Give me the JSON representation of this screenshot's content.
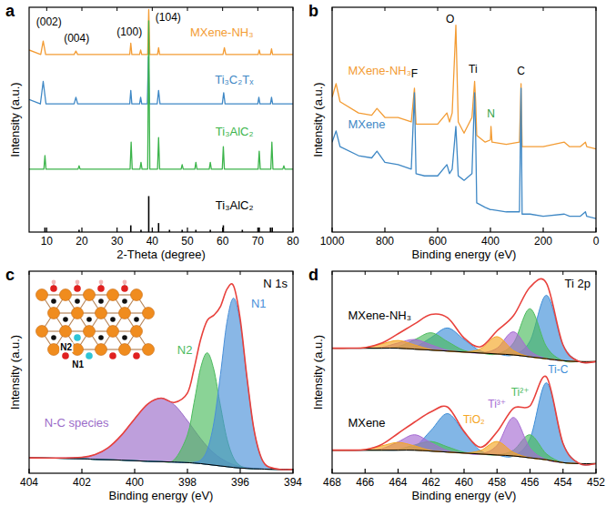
{
  "chart_data": [
    {
      "type": "line",
      "panel": "a",
      "xlabel": "2-Theta (degree)",
      "ylabel": "Intensity (a.u.)",
      "xlim": [
        5,
        80
      ],
      "xticks": [
        10,
        20,
        30,
        40,
        50,
        60,
        70,
        80
      ],
      "ylim": [
        0,
        100
      ],
      "tick_labels": "x",
      "annotations": [
        {
          "text": "(002)"
        },
        {
          "text": "(004)"
        },
        {
          "text": "(100)"
        },
        {
          "text": "(104)"
        }
      ],
      "series": [
        {
          "name": "MXene-NH₃",
          "color": "#f39c34",
          "x": [
            5,
            8.3,
            9.0,
            9.7,
            17.8,
            18.3,
            18.8,
            33.6,
            33.9,
            34.2,
            36.4,
            36.7,
            37.0,
            38.7,
            39.0,
            39.3,
            41.5,
            41.8,
            42.1,
            60.1,
            60.5,
            60.9,
            70.1,
            70.4,
            70.7,
            73.6,
            73.9,
            74.2,
            80
          ],
          "values": [
            81,
            79,
            85,
            79,
            79,
            80.5,
            79,
            79,
            84,
            79,
            79,
            81,
            79,
            79,
            99,
            79,
            79,
            82,
            79,
            79,
            82,
            79,
            79,
            81,
            79,
            79,
            81.5,
            79,
            79
          ]
        },
        {
          "name": "Ti₃C₂Tₓ",
          "color": "#3f88c5",
          "x": [
            5,
            8.2,
            9.0,
            9.8,
            17.8,
            18.3,
            18.8,
            33.6,
            33.9,
            34.2,
            36.4,
            36.7,
            37.0,
            38.6,
            38.9,
            39.2,
            41.4,
            41.8,
            42.2,
            59.9,
            60.3,
            60.7,
            70.0,
            70.3,
            70.6,
            73.6,
            73.9,
            74.2,
            80
          ],
          "values": [
            59,
            57,
            67,
            57,
            57,
            60,
            57,
            57,
            63,
            57,
            57,
            60,
            57,
            57,
            78,
            57,
            57,
            63,
            57,
            57,
            62,
            57,
            57,
            60,
            57,
            57,
            60,
            57,
            57
          ]
        },
        {
          "name": "Ti₃AlC₂",
          "color": "#3cb44b",
          "x": [
            5,
            9.2,
            9.5,
            9.8,
            18.9,
            19.2,
            19.5,
            33.7,
            34.0,
            34.3,
            36.5,
            36.8,
            37.1,
            38.7,
            39.0,
            39.3,
            41.5,
            41.8,
            42.1,
            48.2,
            48.5,
            48.8,
            52.1,
            52.4,
            52.7,
            56.2,
            56.5,
            56.8,
            59.9,
            60.2,
            60.5,
            70.1,
            70.4,
            70.7,
            73.7,
            74.0,
            74.3,
            77.1,
            77.4,
            77.7,
            80
          ],
          "values": [
            28,
            28,
            34,
            28,
            28,
            29.5,
            28,
            28,
            40,
            28,
            28,
            31,
            28,
            28,
            94,
            28,
            28,
            42,
            28,
            28,
            30,
            28,
            28,
            31,
            28,
            28,
            31,
            28,
            28,
            38,
            28,
            28,
            36,
            28,
            28,
            40,
            28,
            28,
            29.5,
            28,
            28
          ]
        },
        {
          "name": "Ti₃AlC₂",
          "type": "stem",
          "color": "#000000",
          "x": [
            9.5,
            19.2,
            33.9,
            36.8,
            39.0,
            41.8,
            44.9,
            48.5,
            52.4,
            56.5,
            60.2,
            65.6,
            70.4,
            73.6,
            74.1
          ],
          "values": [
            2,
            1,
            3,
            1,
            16,
            4,
            1,
            1,
            1,
            1,
            3,
            1,
            2,
            2,
            2
          ]
        }
      ]
    },
    {
      "type": "line",
      "panel": "b",
      "xlabel": "Binding energy (eV)",
      "ylabel": "Intensity (a.u.)",
      "xlim": [
        1000,
        0
      ],
      "xticks": [
        1000,
        800,
        600,
        400,
        200,
        0
      ],
      "ylim": [
        0,
        100
      ],
      "tick_labels": "x",
      "annotations": [
        {
          "text": "F",
          "color": "#000000"
        },
        {
          "text": "O",
          "color": "#000000"
        },
        {
          "text": "Ti",
          "color": "#000000"
        },
        {
          "text": "N",
          "color": "#2ea043"
        },
        {
          "text": "C",
          "color": "#000000"
        }
      ],
      "series": [
        {
          "name": "MXene-NH₃",
          "color": "#f39c34",
          "x": [
            1000,
            985,
            970,
            900,
            850,
            830,
            800,
            750,
            700,
            688,
            682,
            650,
            600,
            565,
            555,
            545,
            531,
            522,
            500,
            470,
            460,
            456,
            452,
            420,
            400,
            398,
            394,
            340,
            290,
            284,
            280,
            250,
            200,
            120,
            100,
            60,
            40,
            35,
            0
          ],
          "values": [
            60,
            66,
            58,
            53,
            52,
            55,
            51,
            51,
            49,
            64,
            48,
            48,
            48,
            53,
            49,
            53,
            92,
            49,
            44,
            51,
            67,
            58,
            43,
            40,
            41,
            47,
            40,
            39,
            40,
            66,
            38,
            38,
            38,
            40,
            38,
            38,
            40,
            38,
            37
          ]
        },
        {
          "name": "MXene",
          "color": "#3f88c5",
          "x": [
            1000,
            985,
            970,
            900,
            850,
            830,
            800,
            750,
            700,
            688,
            682,
            650,
            600,
            565,
            555,
            545,
            531,
            522,
            500,
            470,
            460,
            456,
            452,
            420,
            400,
            398,
            394,
            340,
            290,
            284,
            280,
            250,
            200,
            120,
            100,
            60,
            40,
            35,
            0
          ],
          "values": [
            40,
            45,
            38,
            34,
            33,
            36,
            31,
            30,
            28,
            62,
            26,
            25,
            25,
            30,
            26,
            28,
            47,
            25,
            23,
            26,
            62,
            43,
            13,
            11,
            10,
            10,
            10,
            9,
            9,
            64,
            8,
            8,
            7,
            8,
            7,
            7,
            9,
            7,
            6
          ]
        }
      ]
    },
    {
      "type": "line",
      "panel": "c",
      "title": "N 1s",
      "xlabel": "Binding energy (eV)",
      "ylabel": "Intensity (a.u.)",
      "xlim": [
        404,
        394
      ],
      "xticks": [
        404,
        402,
        400,
        398,
        396,
        394
      ],
      "ylim": [
        0,
        105
      ],
      "tick_labels": "x",
      "line_style": "smooth",
      "x": [
        404,
        403,
        402,
        401.5,
        401,
        400.5,
        400,
        399.5,
        399,
        398.5,
        398,
        397.75,
        397.5,
        397.25,
        397,
        396.75,
        396.5,
        396.25,
        396,
        395.75,
        395.5,
        395.25,
        395,
        394.5,
        394
      ],
      "background": {
        "color": "#000000",
        "values": [
          8,
          7.8,
          7.5,
          7.2,
          7,
          6.8,
          6.5,
          6.2,
          6,
          5.8,
          5.5,
          5.3,
          5,
          4.6,
          4.2,
          3.8,
          3.4,
          3,
          2.7,
          2.5,
          2.3,
          2.2,
          2.1,
          2,
          2
        ]
      },
      "series": [
        {
          "name": "N-C species",
          "type": "area",
          "color": "#9b6cc9",
          "values": [
            8,
            7.9,
            8.3,
            9.7,
            13.3,
            19.8,
            28.3,
            36,
            39,
            35.6,
            27.3,
            22.6,
            18,
            13.9,
            10.5,
            7.9,
            5.9,
            4.4,
            3.5,
            2.9,
            2.5,
            2.3,
            2.1,
            2,
            2
          ]
        },
        {
          "name": "N2",
          "type": "area",
          "color": "#4cbb5e",
          "values": [
            8,
            7.8,
            7.5,
            7.2,
            7,
            6.8,
            6.5,
            6.2,
            6,
            7,
            19.9,
            36.6,
            54.7,
            62.6,
            53.9,
            35.1,
            17.8,
            7.9,
            3.9,
            2.7,
            2.3,
            2.2,
            2.1,
            2,
            2
          ]
        },
        {
          "name": "N1",
          "type": "area",
          "color": "#4a90d9",
          "values": [
            8,
            7.8,
            7.5,
            7.2,
            7,
            6.8,
            6.5,
            6.2,
            6,
            5.8,
            5.5,
            5.7,
            6.8,
            12.1,
            26.1,
            51.2,
            78.8,
            91,
            78.1,
            49.9,
            24.2,
            9.7,
            3.9,
            2,
            2
          ]
        },
        {
          "type": "line",
          "color": "#e8413c",
          "values": [
            8,
            7.9,
            8.3,
            9.7,
            13.3,
            19.8,
            28.3,
            36,
            39,
            36.8,
            41.7,
            54.3,
            69.5,
            79.4,
            82.1,
            86.6,
            95.7,
            97.3,
            80.1,
            50.5,
            24.4,
            9.8,
            3.9,
            2,
            2
          ]
        }
      ],
      "inset_labels": [
        "N2",
        "N1"
      ]
    },
    {
      "type": "line",
      "panel": "d",
      "title": "Ti 2p",
      "xlabel": "Binding energy (eV)",
      "ylabel": "Intensity (a.u.)",
      "xlim": [
        468,
        452
      ],
      "xticks": [
        468,
        466,
        464,
        462,
        460,
        458,
        456,
        454,
        452
      ],
      "ylim": [
        0,
        105
      ],
      "tick_labels": "x",
      "line_style": "smooth",
      "x": [
        468,
        467,
        466,
        465,
        464,
        463,
        462,
        461,
        460,
        459,
        458,
        457,
        456,
        455,
        454,
        453,
        452
      ],
      "components": [
        {
          "name": "Ti-C",
          "color": "#3f8fd8"
        },
        {
          "name": "Ti²⁺",
          "color": "#4cbb5e"
        },
        {
          "name": "Ti³⁺",
          "color": "#a66bd3"
        },
        {
          "name": "TiO₂",
          "color": "#f5a623"
        }
      ],
      "groups": [
        {
          "name": "MXene-NH₃",
          "background": {
            "color": "#000000",
            "values": [
              65,
              65,
              65,
              65,
              65,
              64.5,
              64,
              63.5,
              63,
              62.5,
              62,
              61.5,
              60.5,
              59.5,
              58.5,
              58,
              58
            ]
          },
          "series": [
            {
              "type": "area",
              "values": [
                65,
                65,
                65,
                65,
                65,
                65.5,
                70.5,
                75.5,
                69.5,
                63.5,
                62,
                61.5,
                68.7,
                92.5,
                66.7,
                58,
                58
              ]
            },
            {
              "type": "area",
              "values": [
                65,
                65,
                65,
                65,
                65.8,
                69.4,
                73,
                68.4,
                63.8,
                62.5,
                62,
                67.7,
                85.5,
                65.7,
                58.5,
                58,
                58
              ]
            },
            {
              "type": "area",
              "values": [
                65,
                65,
                65,
                65.4,
                67.7,
                69.5,
                66.7,
                63.9,
                63,
                62.5,
                65,
                73.5,
                63.5,
                59.5,
                58.5,
                58,
                58
              ]
            },
            {
              "type": "area",
              "values": [
                65,
                65,
                65.3,
                67.2,
                69,
                66.7,
                64.3,
                63.5,
                63,
                64.7,
                71,
                63.7,
                60.5,
                59.5,
                58.5,
                58,
                58
              ]
            },
            {
              "type": "line",
              "color": "#e8413c",
              "values": [
                65,
                65,
                65.3,
                67.6,
                72.5,
                77.6,
                82.5,
                80.8,
                70.3,
                65.7,
                74,
                81.9,
                96.7,
                98.7,
                66.7,
                58,
                58
              ]
            }
          ]
        },
        {
          "name": "MXene",
          "background": {
            "color": "#000000",
            "values": [
              12,
              12,
              12,
              12,
              12,
              12,
              11.5,
              11,
              10.5,
              10,
              9.5,
              9,
              8,
              7,
              5.5,
              5,
              5
            ]
          },
          "series": [
            {
              "type": "area",
              "values": [
                12,
                12,
                12,
                12,
                12,
                13.7,
                22.3,
                31,
                21.3,
                11.7,
                9.5,
                9,
                18,
                47,
                15.5,
                5,
                5
              ]
            },
            {
              "type": "area",
              "values": [
                12,
                12,
                12,
                12,
                12.4,
                14.7,
                16.5,
                13.7,
                10.9,
                10,
                9.5,
                12,
                20,
                10,
                5.5,
                5,
                5
              ]
            },
            {
              "type": "area",
              "values": [
                12,
                12,
                12,
                12.7,
                16.3,
                20,
                15.8,
                11.7,
                10.5,
                10,
                14.5,
                29,
                13,
                7,
                5.5,
                5,
                5
              ]
            },
            {
              "type": "area",
              "values": [
                12,
                12,
                12.3,
                14.2,
                16,
                14.2,
                11.8,
                11,
                10.5,
                11.8,
                16.5,
                10.8,
                8,
                7,
                5.5,
                5,
                5
              ]
            },
            {
              "type": "line",
              "color": "#e8413c",
              "values": [
                12,
                12,
                12.3,
                14.9,
                20.7,
                26.6,
                31.9,
                34.4,
                21.7,
                13.5,
                21.5,
                33.8,
                35,
                50,
                15.5,
                5,
                5
              ]
            }
          ]
        }
      ]
    }
  ]
}
